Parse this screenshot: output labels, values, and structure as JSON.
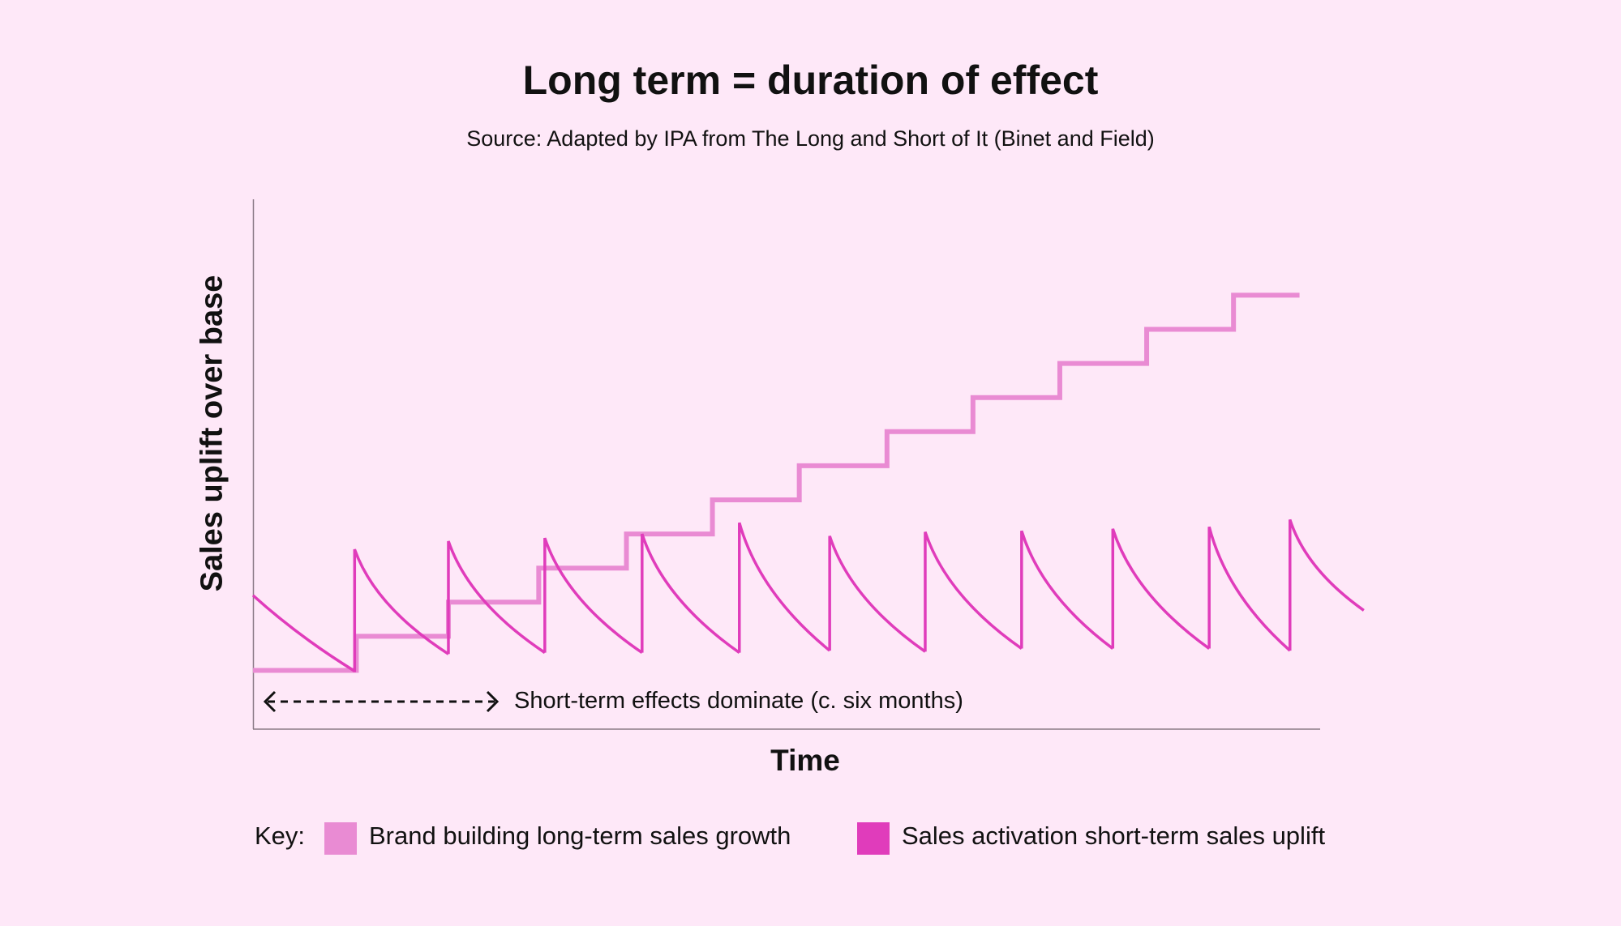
{
  "chart_data": {
    "type": "line",
    "title": "Long term = duration of effect",
    "subtitle": "Source: Adapted by IPA from The Long and Short of It (Binet and Field)",
    "xlabel": "Time",
    "ylabel": "Sales uplift over base",
    "xlim": [
      0,
      12
    ],
    "grid": false,
    "annotation": "Short-term effects dominate (c. six months)",
    "legend": {
      "placement": "bottom",
      "title": "Key:",
      "entries": [
        "Brand building long-term sales growth",
        "Sales activation short-term sales uplift"
      ]
    },
    "series": [
      {
        "name": "Brand building long-term sales growth",
        "color": "#e98bd3",
        "style": "step",
        "step_x": [
          0,
          1.19,
          2.25,
          3.29,
          4.3,
          5.29,
          6.29,
          7.3,
          8.29,
          9.29,
          10.29,
          11.29,
          12.3
        ],
        "levels": [
          0,
          1,
          2,
          3,
          4,
          5,
          6,
          7,
          8,
          9,
          10,
          11
        ]
      },
      {
        "name": "Sales activation short-term sales uplift",
        "color": "#e03cbb",
        "style": "sawtooth",
        "start": [
          0,
          2.2
        ],
        "pulses": [
          {
            "x": 1.17,
            "peak": 3.55,
            "end_x": 2.25,
            "trough": 0.48
          },
          {
            "x": 2.25,
            "peak": 3.79,
            "end_x": 3.36,
            "trough": 0.52
          },
          {
            "x": 3.36,
            "peak": 3.88,
            "end_x": 4.48,
            "trough": 0.52
          },
          {
            "x": 4.48,
            "peak": 4.0,
            "end_x": 5.6,
            "trough": 0.52
          },
          {
            "x": 5.6,
            "peak": 4.33,
            "end_x": 6.64,
            "trough": 0.58
          },
          {
            "x": 6.64,
            "peak": 3.94,
            "end_x": 7.74,
            "trough": 0.55
          },
          {
            "x": 7.74,
            "peak": 4.06,
            "end_x": 8.85,
            "trough": 0.64
          },
          {
            "x": 8.85,
            "peak": 4.09,
            "end_x": 9.9,
            "trough": 0.64
          },
          {
            "x": 9.9,
            "peak": 4.15,
            "end_x": 11.01,
            "trough": 0.64
          },
          {
            "x": 11.01,
            "peak": 4.21,
            "end_x": 11.94,
            "trough": 0.58
          },
          {
            "x": 11.94,
            "peak": 4.42,
            "end_x": 12.79,
            "trough": 1.76
          }
        ]
      }
    ]
  }
}
